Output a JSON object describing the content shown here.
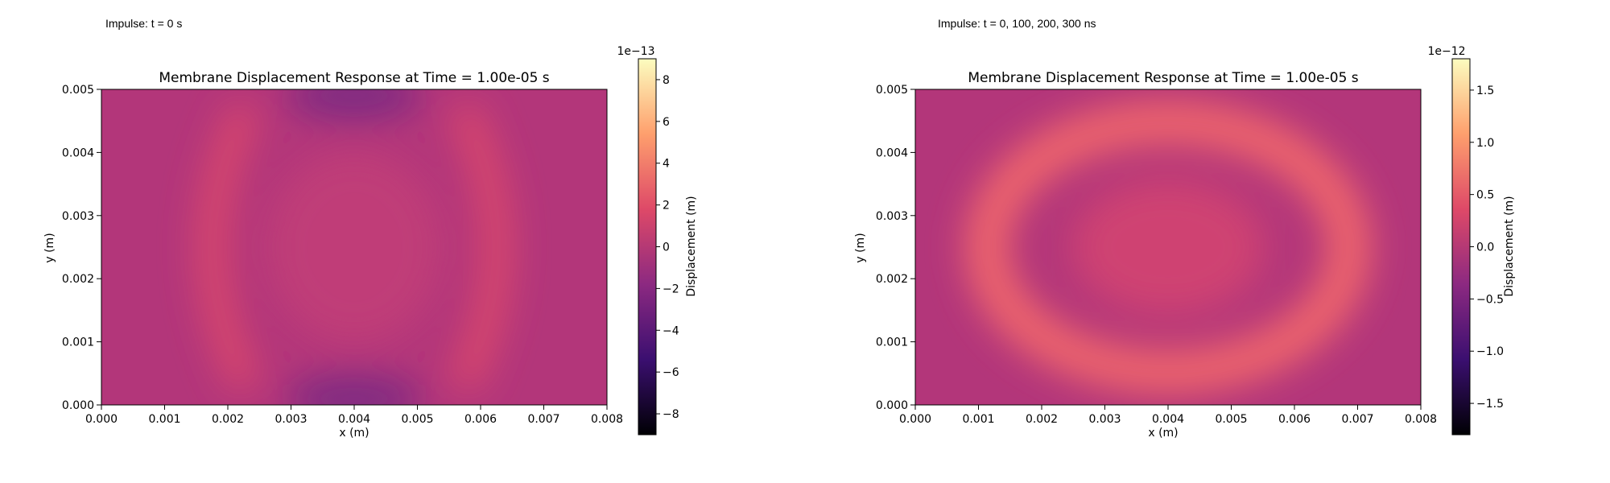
{
  "captions": {
    "left": "Impulse: t = 0 s",
    "right": "Impulse: t = 0, 100, 200, 300 ns"
  },
  "colormap": {
    "name": "magma",
    "stops": [
      "#000004",
      "#3b0f70",
      "#8c2981",
      "#de4968",
      "#fe9f6d",
      "#fcfdbf"
    ]
  },
  "chart_data": [
    {
      "type": "heatmap",
      "title": "Membrane Displacement Response at Time = 1.00e-05 s",
      "xlabel": "x (m)",
      "ylabel": "y (m)",
      "xlim": [
        0.0,
        0.008
      ],
      "ylim": [
        0.0,
        0.005
      ],
      "x_ticks": [
        "0.000",
        "0.001",
        "0.002",
        "0.003",
        "0.004",
        "0.005",
        "0.006",
        "0.007",
        "0.008"
      ],
      "y_ticks": [
        "0.000",
        "0.001",
        "0.002",
        "0.003",
        "0.004",
        "0.005"
      ],
      "field": "two bright arcs near x = 0.002 and x = 0.006 (about +2e-13 m), dark lobes at top and bottom centre near x = 0.004 (about -1.5e-13 m), background near 0",
      "colorbar": {
        "label": "Displacement (m)",
        "exponent": "1e−13",
        "range": [
          -9,
          9
        ],
        "ticks": [
          8,
          6,
          4,
          2,
          0,
          -2,
          -4,
          -6,
          -8
        ],
        "tick_labels": [
          "8",
          "6",
          "4",
          "2",
          "0",
          "−2",
          "−4",
          "−6",
          "−8"
        ]
      }
    },
    {
      "type": "heatmap",
      "title": "Membrane Displacement Response at Time = 1.00e-05 s",
      "xlabel": "x (m)",
      "ylabel": "y (m)",
      "xlim": [
        0.0,
        0.008
      ],
      "ylim": [
        0.0,
        0.005
      ],
      "x_ticks": [
        "0.000",
        "0.001",
        "0.002",
        "0.003",
        "0.004",
        "0.005",
        "0.006",
        "0.007",
        "0.008"
      ],
      "y_ticks": [
        "0.000",
        "0.001",
        "0.002",
        "0.003",
        "0.004",
        "0.005"
      ],
      "field": "bright elliptical ring centred at (0.004, 0.0025) with peak about +0.6e-12 m, lower centre, background near 0",
      "colorbar": {
        "label": "Displacement (m)",
        "exponent": "1e−12",
        "range": [
          -1.8,
          1.8
        ],
        "ticks": [
          1.5,
          1.0,
          0.5,
          0.0,
          -0.5,
          -1.0,
          -1.5
        ],
        "tick_labels": [
          "1.5",
          "1.0",
          "0.5",
          "0.0",
          "−0.5",
          "−1.0",
          "−1.5"
        ]
      }
    }
  ]
}
